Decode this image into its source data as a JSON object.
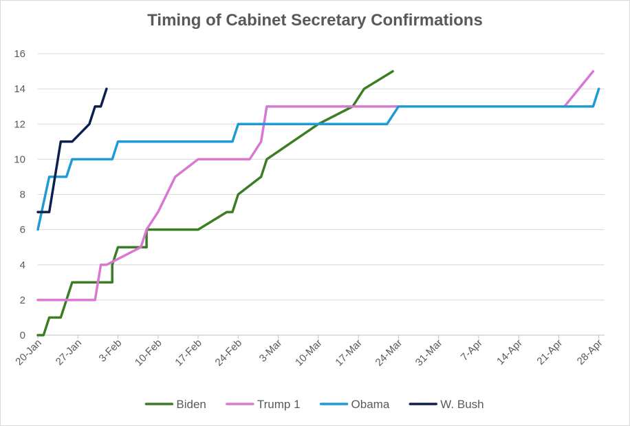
{
  "chart_data": {
    "type": "line",
    "title": "Timing of Cabinet Secretary Confirmations",
    "xlabel": "",
    "ylabel": "",
    "ylim": [
      0,
      16
    ],
    "yticks": [
      0,
      2,
      4,
      6,
      8,
      10,
      12,
      14,
      16
    ],
    "xlim": [
      "20-Jan",
      "29-Apr"
    ],
    "xticks": [
      "20-Jan",
      "27-Jan",
      "3-Feb",
      "10-Feb",
      "17-Feb",
      "24-Feb",
      "3-Mar",
      "10-Mar",
      "17-Mar",
      "24-Mar",
      "31-Mar",
      "7-Apr",
      "14-Apr",
      "21-Apr",
      "28-Apr"
    ],
    "grid": "horizontal",
    "legend": "bottom",
    "series": [
      {
        "name": "Biden",
        "color": "#3a7d23",
        "points": [
          [
            "20-Jan",
            0
          ],
          [
            "21-Jan",
            0
          ],
          [
            "22-Jan",
            1
          ],
          [
            "24-Jan",
            1
          ],
          [
            "26-Jan",
            3
          ],
          [
            "30-Jan",
            3
          ],
          [
            "2-Feb",
            3
          ],
          [
            "2-Feb",
            4
          ],
          [
            "3-Feb",
            5
          ],
          [
            "8-Feb",
            5
          ],
          [
            "8-Feb",
            6
          ],
          [
            "17-Feb",
            6
          ],
          [
            "22-Feb",
            7
          ],
          [
            "23-Feb",
            7
          ],
          [
            "24-Feb",
            8
          ],
          [
            "28-Feb",
            9
          ],
          [
            "1-Mar",
            10
          ],
          [
            "10-Mar",
            12
          ],
          [
            "16-Mar",
            13
          ],
          [
            "18-Mar",
            14
          ],
          [
            "23-Mar",
            15
          ]
        ]
      },
      {
        "name": "Trump 1",
        "color": "#d978d3",
        "points": [
          [
            "20-Jan",
            2
          ],
          [
            "30-Jan",
            2
          ],
          [
            "31-Jan",
            4
          ],
          [
            "1-Feb",
            4
          ],
          [
            "7-Feb",
            5
          ],
          [
            "8-Feb",
            6
          ],
          [
            "10-Feb",
            7
          ],
          [
            "13-Feb",
            9
          ],
          [
            "17-Feb",
            10
          ],
          [
            "26-Feb",
            10
          ],
          [
            "28-Feb",
            11
          ],
          [
            "1-Mar",
            13
          ],
          [
            "22-Apr",
            13
          ],
          [
            "27-Apr",
            15
          ]
        ]
      },
      {
        "name": "Obama",
        "color": "#1e9ad6",
        "points": [
          [
            "20-Jan",
            6
          ],
          [
            "22-Jan",
            9
          ],
          [
            "25-Jan",
            9
          ],
          [
            "26-Jan",
            10
          ],
          [
            "2-Feb",
            10
          ],
          [
            "3-Feb",
            11
          ],
          [
            "23-Feb",
            11
          ],
          [
            "24-Feb",
            12
          ],
          [
            "22-Mar",
            12
          ],
          [
            "24-Mar",
            13
          ],
          [
            "27-Apr",
            13
          ],
          [
            "28-Apr",
            14
          ]
        ]
      },
      {
        "name": "W. Bush",
        "color": "#0d1f4f",
        "points": [
          [
            "20-Jan",
            7
          ],
          [
            "22-Jan",
            7
          ],
          [
            "24-Jan",
            11
          ],
          [
            "26-Jan",
            11
          ],
          [
            "29-Jan",
            12
          ],
          [
            "30-Jan",
            13
          ],
          [
            "31-Jan",
            13
          ],
          [
            "1-Feb",
            14
          ]
        ]
      }
    ]
  }
}
